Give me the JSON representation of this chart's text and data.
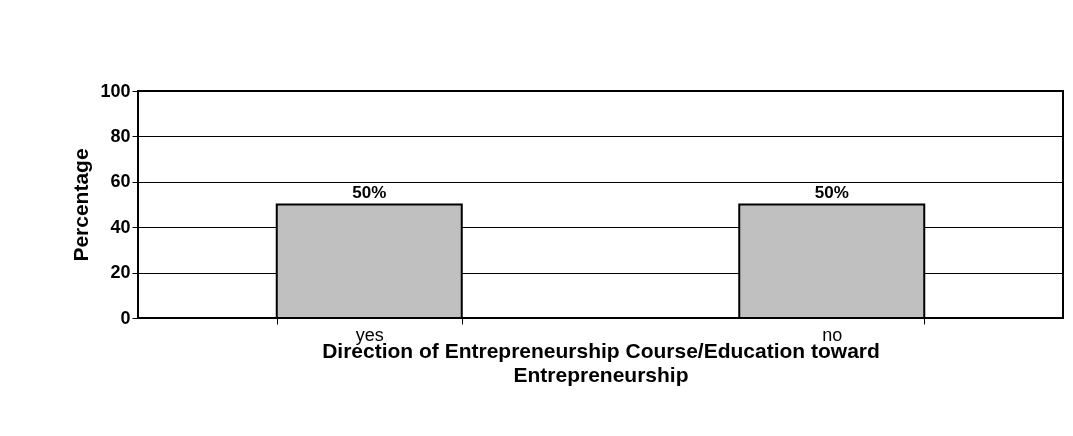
{
  "chart_data": {
    "type": "bar",
    "xlabel": "Direction of Entrepreneurship Course/Education toward Entrepreneurship",
    "ylabel": "Percentage",
    "categories": [
      "yes",
      "no"
    ],
    "values": [
      50,
      50
    ],
    "value_labels": [
      "50%",
      "50%"
    ],
    "color": "#c0c0c0",
    "ylim": [
      0,
      100
    ],
    "yticks": [
      0,
      20,
      40,
      60,
      80,
      100
    ],
    "grid": "y"
  }
}
